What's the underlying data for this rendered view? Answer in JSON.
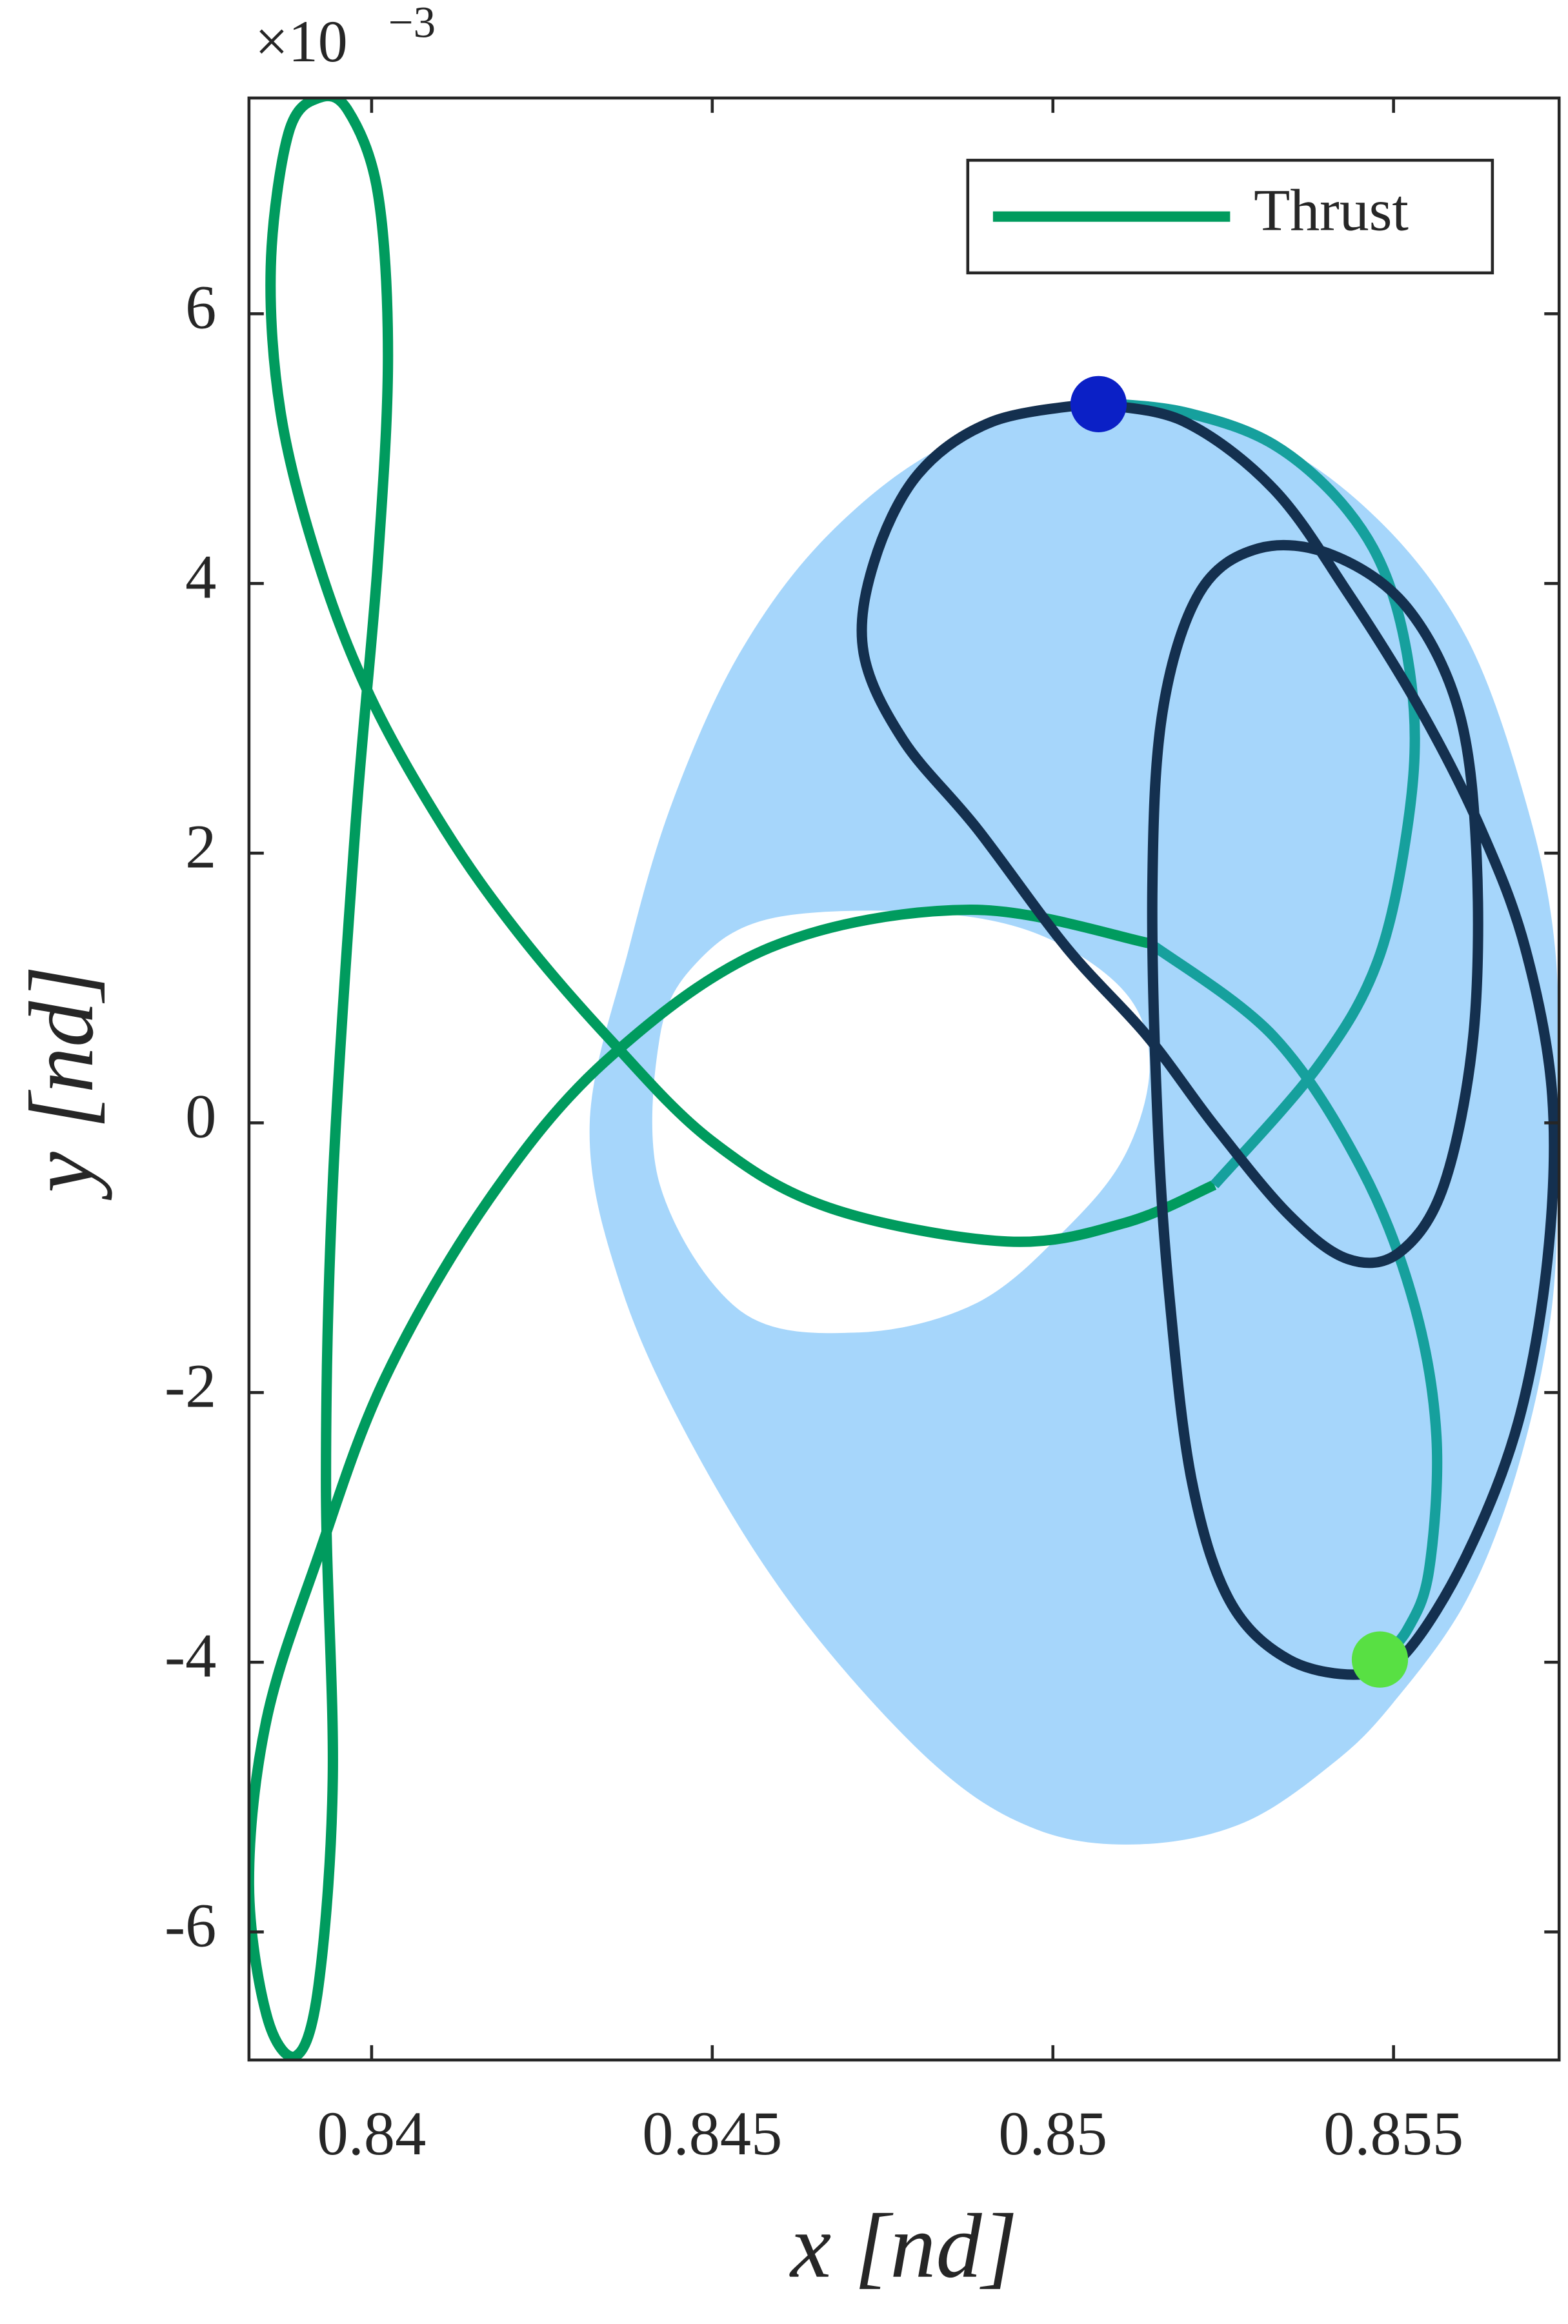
{
  "chart_data": {
    "type": "line",
    "xlabel": "x [nd]",
    "ylabel": "y [nd]",
    "y_multiplier": "×10",
    "y_multiplier_exponent": "−3",
    "xlim": [
      0.8382,
      0.85743
    ],
    "ylim": [
      -6.95,
      7.6
    ],
    "xticks": [
      0.84,
      0.845,
      0.85,
      0.855
    ],
    "yticks": [
      -6,
      -4,
      -2,
      0,
      2,
      4,
      6
    ],
    "legend": "top-right",
    "region": {
      "color": "#a6d6fb",
      "x": [
        0.85067,
        0.84846,
        0.84672,
        0.84541,
        0.84443,
        0.84378,
        0.8432,
        0.84367,
        0.84476,
        0.84628,
        0.84824,
        0.84976,
        0.85128,
        0.8528,
        0.85411,
        0.85498,
        0.85607,
        0.85683,
        0.85733,
        0.85741,
        0.85737,
        0.85693,
        0.85607,
        0.85476,
        0.85302
      ],
      "y": [
        5.34,
        5.03,
        4.37,
        3.49,
        2.4,
        1.3,
        -0.02,
        -1.23,
        -2.44,
        -3.65,
        -4.75,
        -5.24,
        -5.35,
        -5.19,
        -4.75,
        -4.31,
        -3.54,
        -2.55,
        -1.34,
        -0.02,
        1.3,
        2.4,
        3.6,
        4.48,
        5.09
      ],
      "hole_x": [
        0.84802,
        0.84585,
        0.84476,
        0.84422,
        0.84422,
        0.84541,
        0.84715,
        0.84889,
        0.8502,
        0.85107,
        0.85143,
        0.85107,
        0.84976
      ],
      "hole_y": [
        1.57,
        1.52,
        1.19,
        0.64,
        -0.46,
        -1.4,
        -1.56,
        -1.34,
        -0.79,
        -0.24,
        0.42,
        0.97,
        1.41
      ]
    },
    "series": [
      {
        "name": "Thrust",
        "color": "#009b5e",
        "x": [
          0.85143,
          0.84878,
          0.84585,
          0.84346,
          0.84172,
          0.8402,
          0.83922,
          0.83846,
          0.8382,
          0.83846,
          0.83889,
          0.83922,
          0.83943,
          0.83933,
          0.83943,
          0.83976,
          0.84009,
          0.84024,
          0.84009,
          0.83965,
          0.83922,
          0.83878,
          0.83852,
          0.83867,
          0.83922,
          0.83998,
          0.84107,
          0.84215,
          0.84346,
          0.84498,
          0.84672,
          0.84933,
          0.85107,
          0.85237
        ],
        "y": [
          1.33,
          1.58,
          1.3,
          0.47,
          -0.57,
          -1.89,
          -3.21,
          -4.42,
          -5.63,
          -6.62,
          -6.92,
          -6.4,
          -4.86,
          -2.66,
          -0.46,
          2.18,
          4.15,
          5.69,
          6.9,
          7.51,
          7.6,
          7.34,
          6.35,
          5.25,
          4.15,
          3.16,
          2.18,
          1.41,
          0.64,
          -0.13,
          -0.63,
          -0.88,
          -0.74,
          -0.46
        ]
      },
      {
        "color": "#16a09d",
        "x": [
          0.85237,
          0.85389,
          0.85476,
          0.8552,
          0.8553,
          0.85498,
          0.85433,
          0.85324,
          0.85193,
          0.85067
        ],
        "y": [
          -0.46,
          0.42,
          1.19,
          2.18,
          3.05,
          3.93,
          4.54,
          5.03,
          5.27,
          5.34
        ]
      },
      {
        "color": "#16a09d",
        "x": [
          0.85143,
          0.85324,
          0.85454,
          0.8553,
          0.85563,
          0.85552,
          0.8552,
          0.8548
        ],
        "y": [
          1.33,
          0.64,
          -0.35,
          -1.34,
          -2.33,
          -3.32,
          -3.76,
          -3.98
        ]
      },
      {
        "color": "#14304f",
        "x": [
          0.85067,
          0.85193,
          0.85324,
          0.85433,
          0.85541,
          0.85628,
          0.85693,
          0.85733,
          0.85726,
          0.85683,
          0.85607,
          0.8552,
          0.85454,
          0.85346,
          0.85259,
          0.85204,
          0.85172,
          0.85154,
          0.85146,
          0.85161,
          0.85215,
          0.85302,
          0.85411,
          0.8552,
          0.85596,
          0.85622,
          0.85617,
          0.85574,
          0.85509,
          0.85433,
          0.85346,
          0.85237,
          0.85139,
          0.8502,
          0.84889,
          0.8478,
          0.84722,
          0.84737,
          0.84802,
          0.84911,
          0.85067
        ],
        "y": [
          5.33,
          5.2,
          4.7,
          3.93,
          3.05,
          2.18,
          1.3,
          0.2,
          -1.01,
          -2.22,
          -3.21,
          -3.92,
          -4.09,
          -3.98,
          -3.54,
          -2.66,
          -1.34,
          -0.02,
          1.74,
          3.05,
          3.93,
          4.26,
          4.21,
          3.82,
          3.05,
          1.96,
          0.64,
          -0.46,
          -0.96,
          -1.01,
          -0.68,
          -0.02,
          0.64,
          1.3,
          2.18,
          2.84,
          3.49,
          4.15,
          4.81,
          5.2,
          5.34
        ]
      }
    ],
    "markers": [
      {
        "color": "#0b20c6",
        "x": 0.85067,
        "y": 5.33
      },
      {
        "color": "#58e043",
        "x": 0.8548,
        "y": -3.98
      }
    ]
  }
}
